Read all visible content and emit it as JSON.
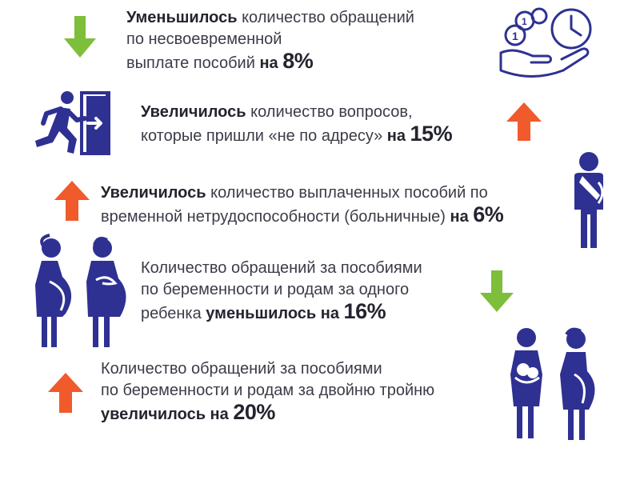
{
  "colors": {
    "decrease_arrow": "#7dbe3b",
    "increase_arrow": "#f15a2b",
    "icon_blue": "#2e3192",
    "text": "#3b3c48"
  },
  "items": [
    {
      "trend": "decrease",
      "arrow_icon": "down-arrow-icon",
      "side_icon": "coins-hand-clock-icon",
      "lines": [
        {
          "bold": "Уменьшилось",
          "text": " количество обращений"
        },
        {
          "text": "по несвоевременной"
        },
        {
          "text": "выплате пособий ",
          "bold2": "на ",
          "num": "8%"
        }
      ]
    },
    {
      "trend": "increase",
      "arrow_icon": "up-arrow-icon",
      "side_icon": "exit-running-man-icon",
      "lines": [
        {
          "bold": "Увеличилось",
          "text": " количество вопросов,"
        },
        {
          "text": "которые пришли «не по адресу» ",
          "bold2": "на ",
          "num": "15%"
        }
      ]
    },
    {
      "trend": "increase",
      "arrow_icon": "up-arrow-icon",
      "side_icon": "injured-person-sling-icon",
      "lines": [
        {
          "bold": "Увеличилось",
          "text": " количество выплаченных пособий по"
        },
        {
          "text": "временной нетрудоспособности (больничные) ",
          "bold2": "на ",
          "num": "6%"
        }
      ]
    },
    {
      "trend": "decrease",
      "arrow_icon": "down-arrow-icon",
      "side_icon": "pregnant-women-icon",
      "lines": [
        {
          "text": "Количество обращений за пособиями"
        },
        {
          "text": "по беременности и родам за одного"
        },
        {
          "text": "ребенка ",
          "bold2": "уменьшилось на ",
          "num": "16%"
        }
      ]
    },
    {
      "trend": "increase",
      "arrow_icon": "up-arrow-icon",
      "side_icon": "pregnant-women-twins-icon",
      "lines": [
        {
          "text": "Количество обращений за пособиями"
        },
        {
          "text": "по беременности и родам за двойню тройню"
        },
        {
          "bold2": "увеличилось на ",
          "num": "20%"
        }
      ]
    }
  ]
}
